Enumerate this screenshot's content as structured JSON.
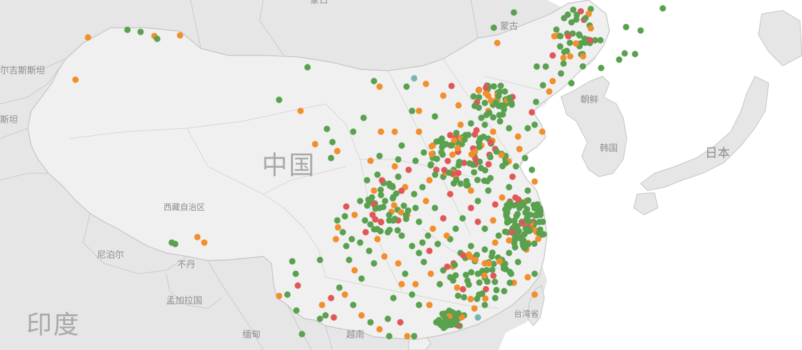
{
  "labels": {
    "china": "中国",
    "india": "印度",
    "mongolia": "蒙古",
    "mongolia_top": "蒙古",
    "north_korea": "朝鲜",
    "south_korea": "韩国",
    "japan": "日本",
    "tibet": "西藏自治区",
    "nepal": "尼泊尔",
    "bhutan": "不丹",
    "bangladesh": "孟加拉国",
    "myanmar": "缅甸",
    "vietnam": "越南",
    "taiwan": "台湾省",
    "kyrgyzstan": "尔吉斯斯坦",
    "tajikistan": "斯坦"
  },
  "colors": {
    "land": "#e6e6e6",
    "china_land": "#f0f0f0",
    "sea": "#ffffff",
    "border": "#c4c4c4",
    "green": "#59a14f",
    "orange": "#f28e2b",
    "red": "#e15759",
    "teal": "#76b7b2"
  }
}
